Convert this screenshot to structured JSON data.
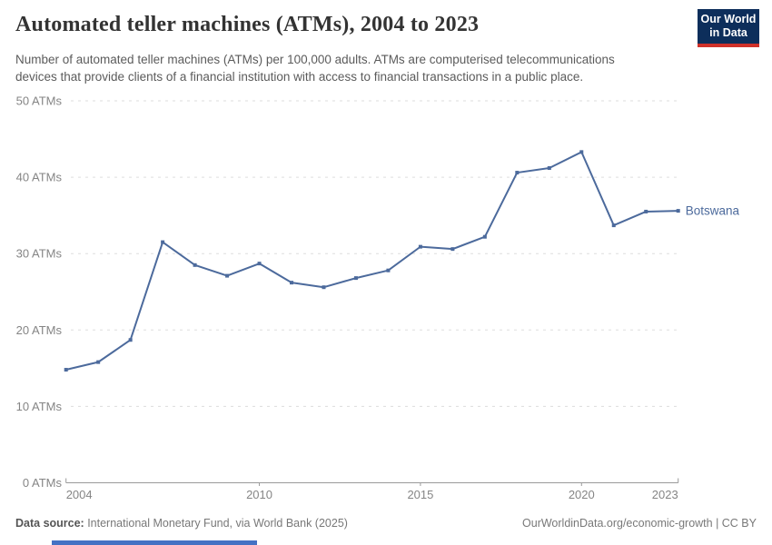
{
  "branding": {
    "logo_line1": "Our World",
    "logo_line2": "in Data",
    "navy": "#0d2e5b",
    "red": "#cf3129"
  },
  "header": {
    "title": "Automated teller machines (ATMs), 2004 to 2023",
    "subtitle_line1": "Number of automated teller machines (ATMs) per 100,000 adults. ATMs are computerised telecommunications",
    "subtitle_line2": "devices that provide clients of a financial institution with access to financial transactions in a public place."
  },
  "chart_data": {
    "type": "line",
    "title": "Automated teller machines (ATMs), 2004 to 2023",
    "xlabel": "",
    "ylabel": "ATMs per 100,000 adults",
    "xlim": [
      2004,
      2023
    ],
    "ylim": [
      0,
      50
    ],
    "grid": "horizontal-dashed",
    "legend_position": "end-of-line-label",
    "x_ticks": [
      2004,
      2010,
      2015,
      2020,
      2023
    ],
    "y_ticks": [
      0,
      10,
      20,
      30,
      40,
      50
    ],
    "y_tick_suffix": " ATMs",
    "x": [
      2004,
      2005,
      2006,
      2007,
      2008,
      2009,
      2010,
      2011,
      2012,
      2013,
      2014,
      2015,
      2016,
      2017,
      2018,
      2019,
      2020,
      2021,
      2022,
      2023
    ],
    "series": [
      {
        "name": "Botswana",
        "color": "#4c6a9c",
        "values": [
          14.8,
          15.8,
          18.7,
          31.5,
          28.5,
          27.1,
          28.7,
          26.2,
          25.6,
          26.8,
          27.8,
          30.9,
          30.6,
          32.2,
          40.6,
          41.2,
          43.3,
          33.7,
          35.5,
          35.6
        ]
      }
    ]
  },
  "footer": {
    "source_label": "Data source:",
    "source_text": " International Monetary Fund, via World Bank (2025)",
    "credit": "OurWorldinData.org/economic-growth | CC BY"
  },
  "colors": {
    "grid": "#dddddd",
    "axis": "#9a9a9a",
    "tick_label": "#858585",
    "series": "#4c6a9c"
  }
}
